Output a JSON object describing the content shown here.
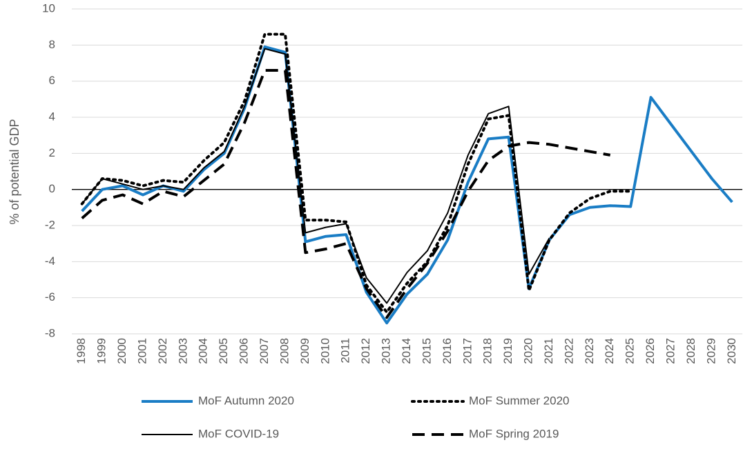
{
  "chart_data": {
    "type": "line",
    "y_label": "% of potential GDP",
    "categories": [
      "1998",
      "1999",
      "2000",
      "2001",
      "2002",
      "2003",
      "2004",
      "2005",
      "2006",
      "2007",
      "2008",
      "2009",
      "2010",
      "2011",
      "2012",
      "2013",
      "2014",
      "2015",
      "2016",
      "2017",
      "2018",
      "2019",
      "2020",
      "2021",
      "2022",
      "2023",
      "2024",
      "2025",
      "2026",
      "2027",
      "2028",
      "2029",
      "2030"
    ],
    "ylim": [
      -8,
      10
    ],
    "yticks": [
      -8,
      -6,
      -4,
      -2,
      0,
      2,
      4,
      6,
      8,
      10
    ],
    "grid": true,
    "legend": "bottom",
    "series": [
      {
        "name": "MoF Autumn 2020",
        "color": "#1a7dc5",
        "style": "solid",
        "width": 4,
        "values": [
          -1.2,
          0.0,
          0.2,
          -0.3,
          0.2,
          -0.1,
          1.1,
          2.0,
          4.5,
          7.9,
          7.6,
          -2.9,
          -2.6,
          -2.5,
          -5.7,
          -7.4,
          -5.8,
          -4.7,
          -2.8,
          0.4,
          2.8,
          2.9,
          -5.5,
          -2.8,
          -1.4,
          -1.0,
          -0.9,
          -0.95,
          5.1,
          3.6,
          2.1,
          0.6,
          -0.7
        ]
      },
      {
        "name": "MoF Summer 2020",
        "color": "#000000",
        "style": "dotted",
        "width": 4,
        "values": [
          -0.8,
          0.6,
          0.5,
          0.2,
          0.5,
          0.4,
          1.6,
          2.6,
          4.9,
          8.6,
          8.6,
          -1.7,
          -1.7,
          -1.8,
          -5.3,
          -6.8,
          -5.2,
          -4.0,
          -2.0,
          1.4,
          3.9,
          4.1,
          -5.6,
          -2.8,
          -1.3,
          -0.5,
          -0.1,
          -0.1,
          null,
          null,
          null,
          null,
          null
        ]
      },
      {
        "name": "MoF COVID-19",
        "color": "#000000",
        "style": "solid",
        "width": 2,
        "values": [
          -0.8,
          0.6,
          0.3,
          0.0,
          0.2,
          0.0,
          1.2,
          2.1,
          4.6,
          7.8,
          7.5,
          -2.4,
          -2.1,
          -1.9,
          -4.9,
          -6.3,
          -4.6,
          -3.4,
          -1.3,
          1.9,
          4.2,
          4.6,
          -4.7,
          -2.7,
          null,
          null,
          null,
          null,
          null,
          null,
          null,
          null,
          null
        ]
      },
      {
        "name": "MoF Spring 2019",
        "color": "#000000",
        "style": "dashed",
        "width": 4,
        "values": [
          -1.6,
          -0.6,
          -0.3,
          -0.8,
          -0.1,
          -0.4,
          0.5,
          1.4,
          3.7,
          6.6,
          6.6,
          -3.5,
          -3.3,
          -3.0,
          -5.5,
          -7.1,
          -5.5,
          -4.1,
          -2.3,
          -0.1,
          1.6,
          2.4,
          2.6,
          2.5,
          2.3,
          2.1,
          1.9,
          null,
          null,
          null,
          null,
          null,
          null
        ]
      }
    ]
  }
}
